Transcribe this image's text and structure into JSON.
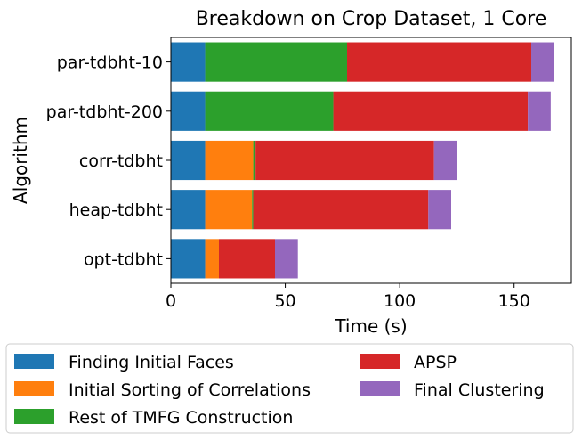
{
  "chart_data": {
    "type": "bar",
    "orientation": "horizontal",
    "stacked": true,
    "title": "Breakdown on Crop Dataset, 1 Core",
    "xlabel": "Time (s)",
    "ylabel": "Algorithm",
    "xlim": [
      0,
      175
    ],
    "xticks": [
      0,
      50,
      100,
      150
    ],
    "grid": false,
    "legend_position": "bottom",
    "categories": [
      "par-tdbht-10",
      "par-tdbht-200",
      "corr-tdbht",
      "heap-tdbht",
      "opt-tdbht"
    ],
    "series": [
      {
        "name": "Finding Initial Faces",
        "color": "#1f77b4",
        "values": [
          15,
          15,
          15,
          15,
          15
        ]
      },
      {
        "name": "Initial Sorting of Correlations",
        "color": "#ff7f0e",
        "values": [
          0,
          0,
          21,
          20.5,
          6
        ]
      },
      {
        "name": "Rest of TMFG Construction",
        "color": "#2ca02c",
        "values": [
          62,
          56,
          1,
          0.5,
          0
        ]
      },
      {
        "name": "APSP",
        "color": "#d62728",
        "values": [
          80.5,
          85,
          78,
          76.5,
          24.5
        ]
      },
      {
        "name": "Final Clustering",
        "color": "#9467bd",
        "values": [
          10,
          10,
          10,
          10,
          10
        ]
      }
    ]
  }
}
